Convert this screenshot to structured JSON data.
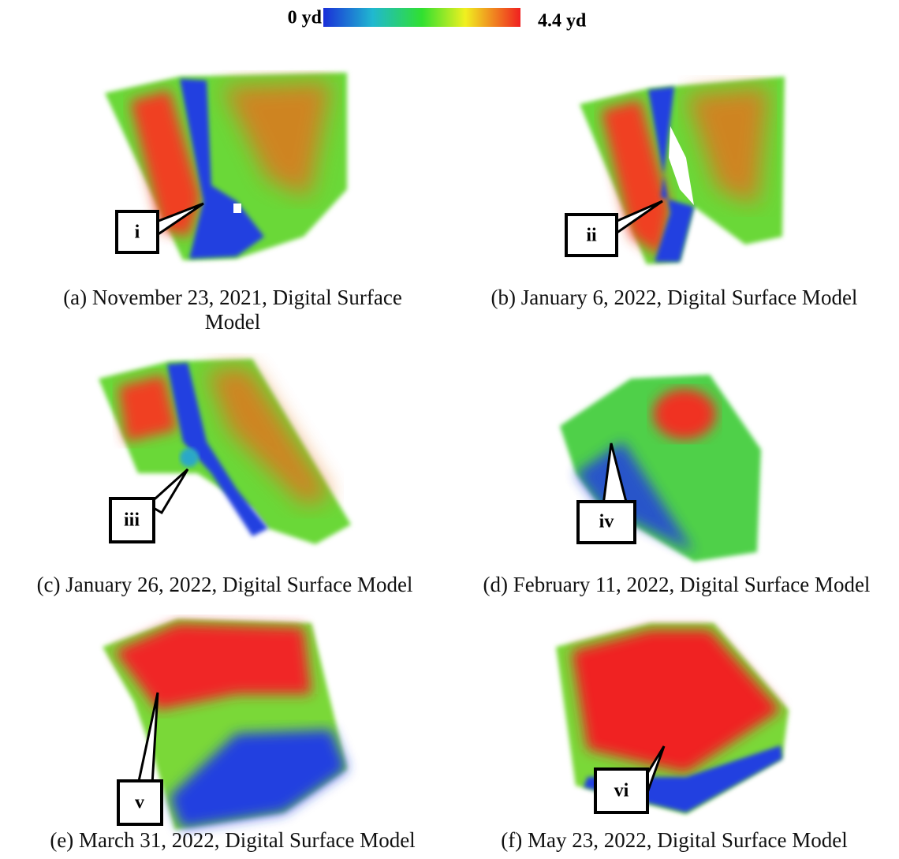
{
  "colorbar": {
    "min_label": "0 yd",
    "max_label": "4.4 yd"
  },
  "panels": [
    {
      "caption": "(a) November 23, 2021, Digital Surface Model",
      "callout": "i"
    },
    {
      "caption": "(b) January 6, 2022, Digital Surface Model",
      "callout": "ii"
    },
    {
      "caption": "(c) January 26, 2022, Digital Surface Model",
      "callout": "iii"
    },
    {
      "caption": "(d) February 11, 2022, Digital Surface Model",
      "callout": "iv"
    },
    {
      "caption": "(e) March 31, 2022, Digital Surface Model",
      "callout": "v"
    },
    {
      "caption": "(f) May 23, 2022, Digital Surface Model",
      "callout": "vi"
    }
  ]
}
